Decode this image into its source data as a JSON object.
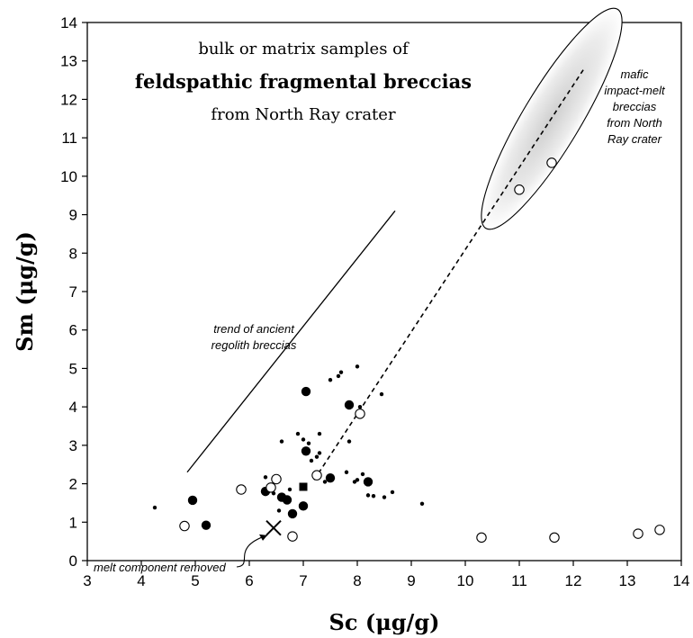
{
  "chart_data": {
    "type": "scatter",
    "title_lines": [
      "bulk or matrix samples of",
      "feldspathic fragmental breccias",
      "from North Ray crater"
    ],
    "xlabel": "Sc  (μg/g)",
    "ylabel": "Sm  (μg/g)",
    "xlim": [
      3,
      14
    ],
    "ylim": [
      0,
      14
    ],
    "xticks": [
      3,
      4,
      5,
      6,
      7,
      8,
      9,
      10,
      11,
      12,
      13,
      14
    ],
    "yticks": [
      0,
      1,
      2,
      3,
      4,
      5,
      6,
      7,
      8,
      9,
      10,
      11,
      12,
      13,
      14
    ],
    "grid": false,
    "series": [
      {
        "marker": "small-filled-dot",
        "points": [
          [
            4.25,
            1.38
          ],
          [
            6.3,
            2.17
          ],
          [
            6.45,
            1.75
          ],
          [
            6.55,
            1.3
          ],
          [
            6.6,
            3.1
          ],
          [
            6.9,
            3.3
          ],
          [
            7.0,
            3.15
          ],
          [
            7.1,
            3.05
          ],
          [
            7.15,
            2.6
          ],
          [
            7.25,
            2.7
          ],
          [
            7.3,
            2.8
          ],
          [
            7.3,
            3.3
          ],
          [
            7.5,
            4.7
          ],
          [
            7.65,
            4.8
          ],
          [
            7.7,
            4.9
          ],
          [
            7.8,
            2.3
          ],
          [
            7.85,
            3.1
          ],
          [
            7.95,
            2.05
          ],
          [
            8.0,
            2.1
          ],
          [
            8.0,
            5.05
          ],
          [
            8.05,
            4.0
          ],
          [
            8.1,
            2.25
          ],
          [
            8.2,
            1.7
          ],
          [
            8.3,
            1.68
          ],
          [
            8.45,
            4.33
          ],
          [
            8.5,
            1.65
          ],
          [
            8.65,
            1.78
          ],
          [
            9.2,
            1.48
          ],
          [
            7.4,
            2.05
          ],
          [
            6.75,
            1.85
          ]
        ]
      },
      {
        "marker": "large-filled-dot",
        "points": [
          [
            4.95,
            1.57
          ],
          [
            5.2,
            0.92
          ],
          [
            6.3,
            1.8
          ],
          [
            6.6,
            1.65
          ],
          [
            6.7,
            1.58
          ],
          [
            6.8,
            1.22
          ],
          [
            7.0,
            1.42
          ],
          [
            7.05,
            2.85
          ],
          [
            7.05,
            4.4
          ],
          [
            7.5,
            2.15
          ],
          [
            7.85,
            4.05
          ],
          [
            8.2,
            2.05
          ]
        ]
      },
      {
        "marker": "open-circle",
        "points": [
          [
            4.8,
            0.9
          ],
          [
            5.85,
            1.85
          ],
          [
            6.4,
            1.9
          ],
          [
            6.5,
            2.12
          ],
          [
            6.8,
            0.63
          ],
          [
            7.25,
            2.22
          ],
          [
            8.05,
            3.82
          ],
          [
            10.3,
            0.6
          ],
          [
            11.0,
            9.65
          ],
          [
            11.6,
            10.35
          ],
          [
            11.65,
            0.6
          ],
          [
            13.2,
            0.7
          ],
          [
            13.6,
            0.8
          ]
        ]
      },
      {
        "marker": "filled-square",
        "points": [
          [
            7.0,
            1.92
          ]
        ]
      },
      {
        "marker": "cross",
        "points": [
          [
            6.45,
            0.85
          ]
        ]
      }
    ],
    "annotations": {
      "trend_label": [
        "trend of ancient",
        "regolith breccias"
      ],
      "trend_line": [
        [
          4.85,
          2.3
        ],
        [
          8.7,
          9.1
        ]
      ],
      "mafic_label": [
        "mafic",
        "impact-melt",
        "breccias",
        "from North",
        "Ray crater"
      ],
      "mixing_line": [
        [
          7.2,
          2.1
        ],
        [
          12.2,
          12.8
        ]
      ],
      "melt_label": "melt component removed",
      "melt_arrow_target": [
        6.4,
        0.8
      ]
    }
  }
}
